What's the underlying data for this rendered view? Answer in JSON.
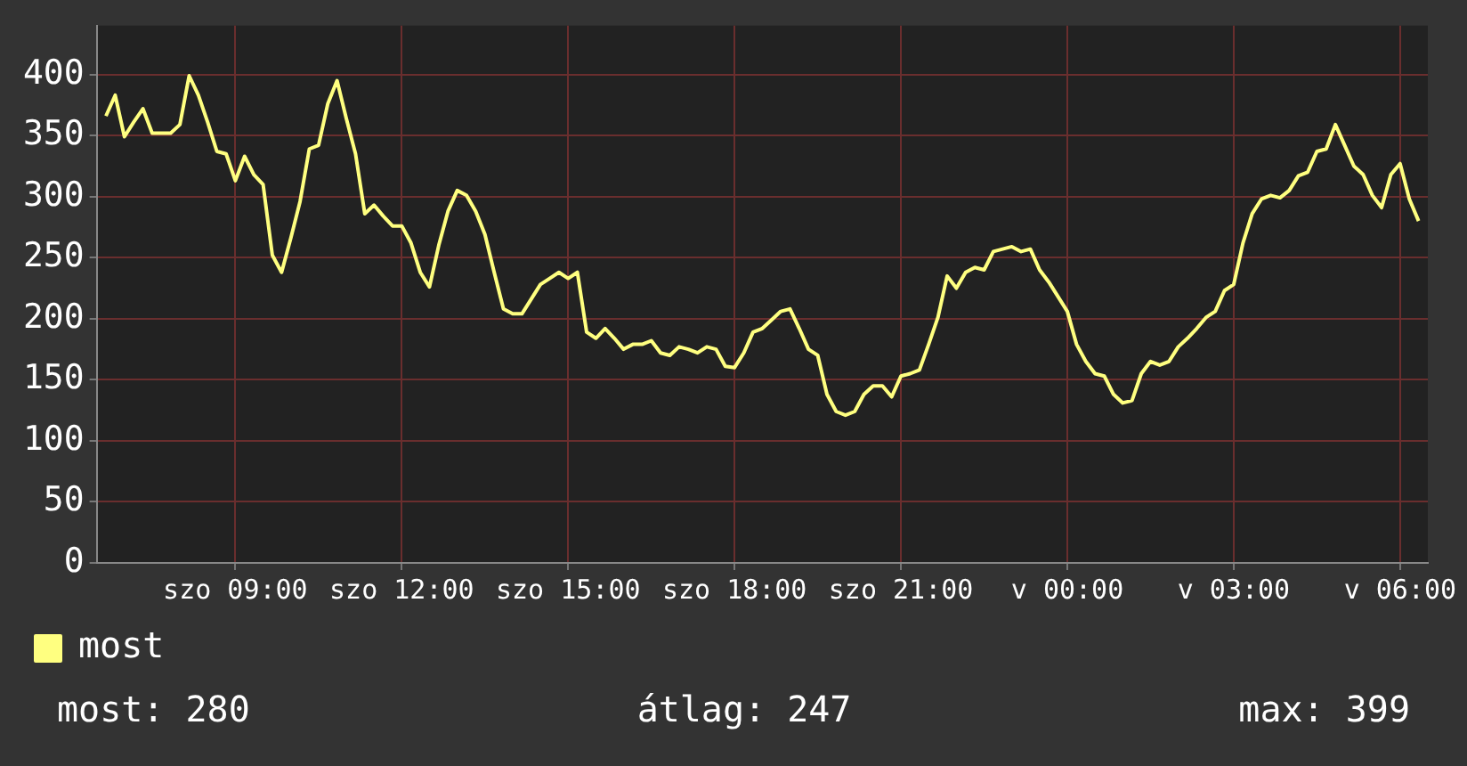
{
  "chart_data": {
    "type": "line",
    "categories": [
      null,
      null,
      null,
      null,
      null,
      null,
      null,
      null,
      null,
      null,
      null,
      null,
      null,
      null,
      null,
      "szo 09:00",
      null,
      null,
      null,
      null,
      null,
      null,
      null,
      null,
      null,
      null,
      null,
      null,
      null,
      null,
      null,
      null,
      null,
      "szo 12:00",
      null,
      null,
      null,
      null,
      null,
      null,
      null,
      null,
      null,
      null,
      null,
      null,
      null,
      null,
      null,
      null,
      null,
      "szo 15:00",
      null,
      null,
      null,
      null,
      null,
      null,
      null,
      null,
      null,
      null,
      null,
      null,
      null,
      null,
      null,
      null,
      null,
      "szo 18:00",
      null,
      null,
      null,
      null,
      null,
      null,
      null,
      null,
      null,
      null,
      null,
      null,
      null,
      null,
      null,
      null,
      null,
      "szo 21:00",
      null,
      null,
      null,
      null,
      null,
      null,
      null,
      null,
      null,
      null,
      null,
      null,
      null,
      null,
      null,
      null,
      null,
      "v 00:00",
      null,
      null,
      null,
      null,
      null,
      null,
      null,
      null,
      null,
      null,
      null,
      null,
      null,
      null,
      null,
      null,
      null,
      "v 03:00",
      null,
      null,
      null,
      null,
      null,
      null,
      null,
      null,
      null,
      null,
      null,
      null,
      null,
      null,
      null,
      null,
      null,
      "v 06:00",
      null,
      null,
      null
    ],
    "ylim": [
      0,
      440
    ],
    "yticks": [
      0,
      50,
      100,
      150,
      200,
      250,
      300,
      350,
      400
    ],
    "grid": true,
    "legend": "bottom left",
    "marker": "none",
    "line_style": "solid",
    "annotations": [
      "most: 280",
      "átlag: 247",
      "max: 399"
    ],
    "series": [
      {
        "name": "most",
        "color": "#ffff80",
        "values": [
          null,
          366,
          383,
          349,
          361,
          372,
          352,
          352,
          352,
          359,
          399,
          383,
          361,
          337,
          335,
          313,
          333,
          318,
          310,
          252,
          238,
          266,
          296,
          339,
          342,
          376,
          395,
          364,
          335,
          286,
          293,
          284,
          276,
          276,
          262,
          238,
          226,
          260,
          288,
          305,
          301,
          288,
          269,
          238,
          208,
          204,
          204,
          216,
          228,
          233,
          238,
          233,
          238,
          189,
          184,
          192,
          184,
          175,
          179,
          179,
          182,
          172,
          170,
          177,
          175,
          172,
          177,
          175,
          161,
          160,
          172,
          189,
          192,
          199,
          206,
          208,
          192,
          175,
          170,
          138,
          124,
          121,
          124,
          138,
          145,
          145,
          136,
          153,
          155,
          158,
          179,
          201,
          235,
          225,
          238,
          242,
          240,
          255,
          257,
          259,
          255,
          257,
          240,
          230,
          218,
          206,
          179,
          165,
          155,
          153,
          138,
          131,
          133,
          155,
          165,
          162,
          165,
          177,
          184,
          192,
          201,
          206,
          223,
          228,
          262,
          286,
          298,
          301,
          299,
          305,
          317,
          320,
          337,
          339,
          359,
          342,
          325,
          318,
          301,
          291,
          318,
          327,
          298,
          280,
          null
        ]
      }
    ]
  }
}
